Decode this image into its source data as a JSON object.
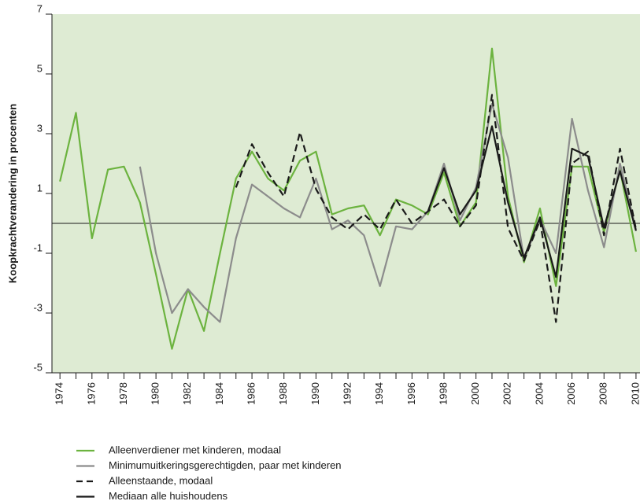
{
  "chart_data": {
    "type": "line",
    "y_label": "Koopkrachtverandering in procenten",
    "x": [
      1974,
      1975,
      1976,
      1977,
      1978,
      1979,
      1980,
      1981,
      1982,
      1983,
      1984,
      1985,
      1986,
      1987,
      1988,
      1989,
      1990,
      1991,
      1992,
      1993,
      1994,
      1995,
      1996,
      1997,
      1998,
      1999,
      2000,
      2001,
      2002,
      2003,
      2004,
      2005,
      2006,
      2007,
      2008,
      2009,
      2010
    ],
    "series": [
      {
        "name": "Alleenverdiener met kinderen, modaal",
        "color": "#6cb33f",
        "style": "solid",
        "values": [
          1.4,
          3.7,
          -0.5,
          1.8,
          1.9,
          0.7,
          -1.7,
          -4.2,
          -2.2,
          -3.6,
          -1.0,
          1.5,
          2.4,
          1.5,
          1.1,
          2.1,
          2.4,
          0.3,
          0.5,
          0.6,
          -0.4,
          0.8,
          0.6,
          0.3,
          1.7,
          -0.1,
          0.7,
          5.85,
          0.9,
          -1.3,
          0.5,
          -2.1,
          1.9,
          1.9,
          -0.3,
          1.8,
          -0.95
        ]
      },
      {
        "name": "Minimumuitkeringsgerechtigden, paar met kinderen",
        "color": "#8c8c8c",
        "style": "solid",
        "values": [
          null,
          null,
          null,
          null,
          null,
          1.9,
          -1.0,
          -3.0,
          -2.2,
          -2.8,
          -3.3,
          -0.5,
          1.3,
          0.9,
          0.5,
          0.2,
          1.5,
          -0.2,
          0.1,
          -0.4,
          -2.1,
          -0.1,
          -0.2,
          0.4,
          2.0,
          0.1,
          1.2,
          4.0,
          2.2,
          -1.2,
          0.15,
          -1.0,
          3.5,
          1.1,
          -0.8,
          2.0,
          -0.2
        ]
      },
      {
        "name": "Alleenstaande, modaal",
        "color": "#1a1a1a",
        "style": "dashed",
        "values": [
          null,
          null,
          null,
          null,
          null,
          null,
          null,
          null,
          null,
          null,
          null,
          1.2,
          2.65,
          1.7,
          0.9,
          3.05,
          1.15,
          0.2,
          -0.2,
          0.3,
          -0.2,
          0.8,
          0,
          0.4,
          0.8,
          -0.1,
          0.6,
          4.3,
          -0.15,
          -1.25,
          0.1,
          -3.3,
          2.0,
          2.4,
          -0.4,
          2.5,
          -0.2
        ]
      },
      {
        "name": "Mediaan alle huishoudens",
        "color": "#1a1a1a",
        "style": "solid",
        "values": [
          null,
          null,
          null,
          null,
          null,
          null,
          null,
          null,
          null,
          null,
          null,
          null,
          null,
          null,
          null,
          null,
          null,
          null,
          null,
          null,
          null,
          null,
          null,
          0.4,
          1.85,
          0.3,
          1.1,
          3.25,
          0.7,
          -1.15,
          0.2,
          -1.8,
          2.5,
          2.25,
          -0.15,
          1.75,
          -0.25
        ]
      }
    ],
    "xlim": [
      1973.5,
      2010.25
    ],
    "xticks": [
      1974,
      1976,
      1978,
      1980,
      1982,
      1984,
      1986,
      1988,
      1990,
      1992,
      1994,
      1996,
      1998,
      2000,
      2002,
      2004,
      2006,
      2008,
      2010
    ],
    "xticks_minor": [
      1975,
      1977,
      1979,
      1981,
      1983,
      1985,
      1987,
      1989,
      1991,
      1993,
      1995,
      1997,
      1999,
      2001,
      2003,
      2005,
      2007,
      2009
    ],
    "ylim": [
      -5,
      7
    ],
    "yticks": [
      -5,
      -3,
      -1,
      1,
      3,
      5,
      7
    ],
    "reference_line": 0,
    "background": "#deebd3"
  }
}
